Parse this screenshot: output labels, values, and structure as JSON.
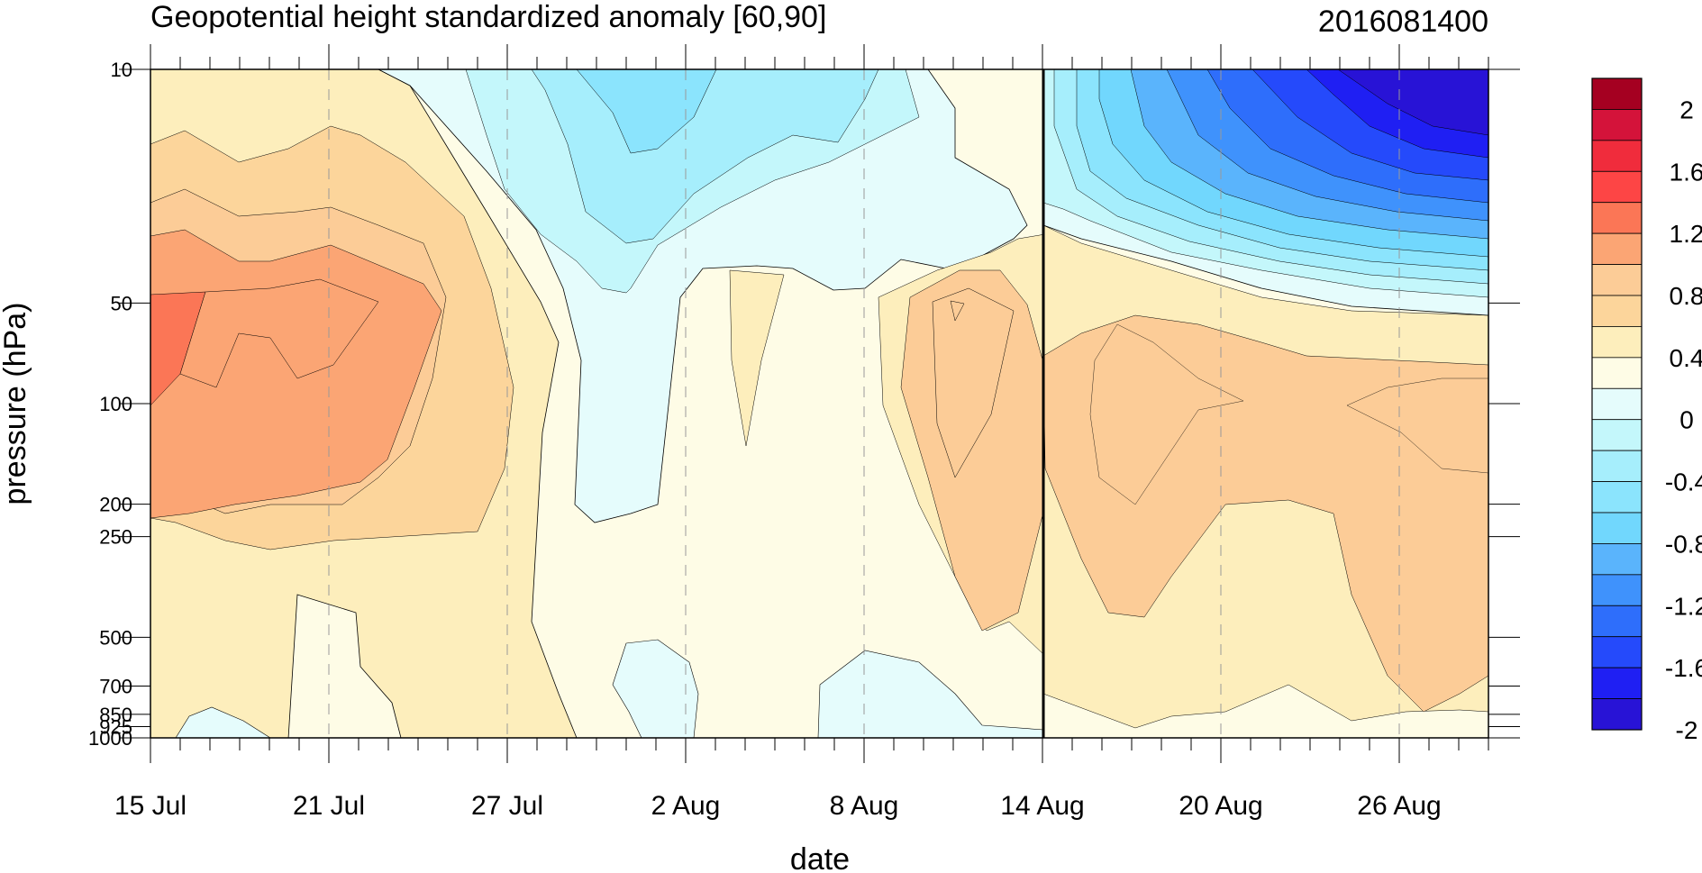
{
  "chart_data": {
    "type": "heatmap",
    "title": "Geopotential height standardized anomaly [60,90]",
    "right_title": "2016081400",
    "xlabel": "date",
    "ylabel": "pressure (hPa)",
    "y_scale": "log",
    "y_range_hPa": [
      1000,
      10
    ],
    "x_range_days_from_start": [
      0,
      45
    ],
    "x_ticks": [
      {
        "day": 0,
        "label": "15 Jul"
      },
      {
        "day": 6,
        "label": "21 Jul"
      },
      {
        "day": 12,
        "label": "27 Jul"
      },
      {
        "day": 18,
        "label": "2 Aug"
      },
      {
        "day": 24,
        "label": "8 Aug"
      },
      {
        "day": 30,
        "label": "14 Aug"
      },
      {
        "day": 36,
        "label": "20 Aug"
      },
      {
        "day": 42,
        "label": "26 Aug"
      }
    ],
    "y_ticks": [
      {
        "p": 10,
        "label": "10"
      },
      {
        "p": 50,
        "label": "50"
      },
      {
        "p": 100,
        "label": "100"
      },
      {
        "p": 200,
        "label": "200"
      },
      {
        "p": 250,
        "label": "250"
      },
      {
        "p": 500,
        "label": "500"
      },
      {
        "p": 700,
        "label": "700"
      },
      {
        "p": 850,
        "label": "850"
      },
      {
        "p": 925,
        "label": "925"
      },
      {
        "p": 1000,
        "label": "1000"
      }
    ],
    "forecast_start_day": 30,
    "grid": "dashed vertical lines at x ticks",
    "colorbar": {
      "labels": [
        "2",
        "1.6",
        "1.2",
        "0.8",
        "0.4",
        "0",
        "-0.4",
        "-0.8",
        "-1.2",
        "-1.6",
        "-2"
      ],
      "colors_top_to_bottom": [
        "#a50021",
        "#d4133a",
        "#f02c3c",
        "#fd4545",
        "#fb7656",
        "#fba574",
        "#fccc97",
        "#fcd59b",
        "#fdeebc",
        "#fefce6",
        "#e5fcfc",
        "#c4f7fb",
        "#a6eefc",
        "#8be4fd",
        "#71d7fd",
        "#5ab4fc",
        "#3f92fc",
        "#2e6efb",
        "#254afb",
        "#1f1ff3",
        "#2813d6"
      ]
    },
    "series": [
      {
        "level": 1.2,
        "color": "#fb7656"
      },
      {
        "level": 0.8,
        "color": "#fba574"
      },
      {
        "level": 0.6,
        "color": "#fccc97"
      },
      {
        "level": 0.4,
        "color": "#fcd59b"
      },
      {
        "level": 0.2,
        "color": "#fdeebc"
      },
      {
        "level": 0.0,
        "color": "#fefce6"
      },
      {
        "level": -0.2,
        "color": "#e5fcfc"
      },
      {
        "level": -0.4,
        "color": "#c4f7fb"
      },
      {
        "level": -0.6,
        "color": "#a6eefc"
      },
      {
        "level": -0.8,
        "color": "#8be4fd"
      },
      {
        "level": -1.0,
        "color": "#71d7fd"
      },
      {
        "level": -1.2,
        "color": "#5ab4fc"
      },
      {
        "level": -1.4,
        "color": "#3f92fc"
      },
      {
        "level": -1.6,
        "color": "#2e6efb"
      },
      {
        "level": -1.8,
        "color": "#254afb"
      },
      {
        "level": -2.0,
        "color": "#1f1ff3"
      },
      {
        "level": -2.2,
        "color": "#2813d6"
      }
    ]
  }
}
